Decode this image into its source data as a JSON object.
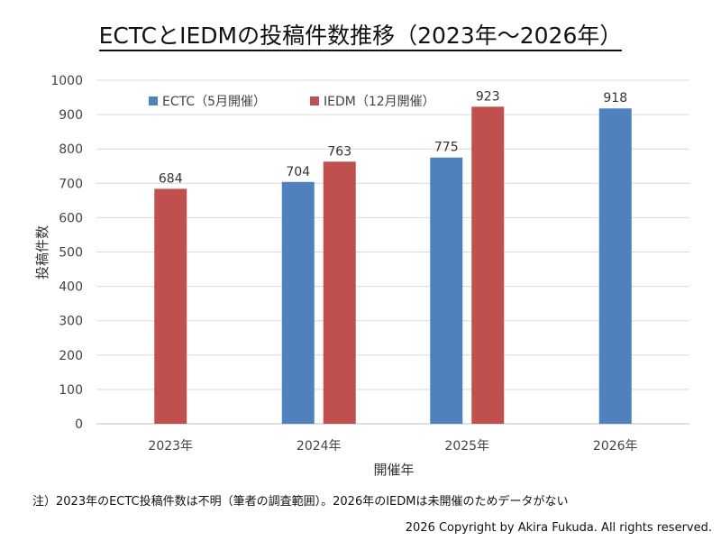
{
  "title": "ECTCとIEDMの投稿件数推移（2023年～2026年）",
  "chart_data": {
    "type": "bar",
    "categories": [
      "2023年",
      "2024年",
      "2025年",
      "2026年"
    ],
    "series": [
      {
        "name": "ECTC（5月開催）",
        "color": "#4f81bd",
        "values": [
          null,
          704,
          775,
          918
        ]
      },
      {
        "name": "IEDM（12月開催）",
        "color": "#c0504d",
        "values": [
          684,
          763,
          923,
          null
        ]
      }
    ],
    "xlabel": "開催年",
    "ylabel": "投稿件数",
    "ylim": [
      0,
      1000
    ],
    "yticks": [
      0,
      100,
      200,
      300,
      400,
      500,
      600,
      700,
      800,
      900,
      1000
    ],
    "grid": true,
    "legend": "top-left"
  },
  "footnote": "注）2023年のECTC投稿件数は不明（筆者の調査範囲）。2026年のIEDMは未開催のためデータがない",
  "copyright": "2026 Copyright by Akira Fukuda. All rights reserved."
}
